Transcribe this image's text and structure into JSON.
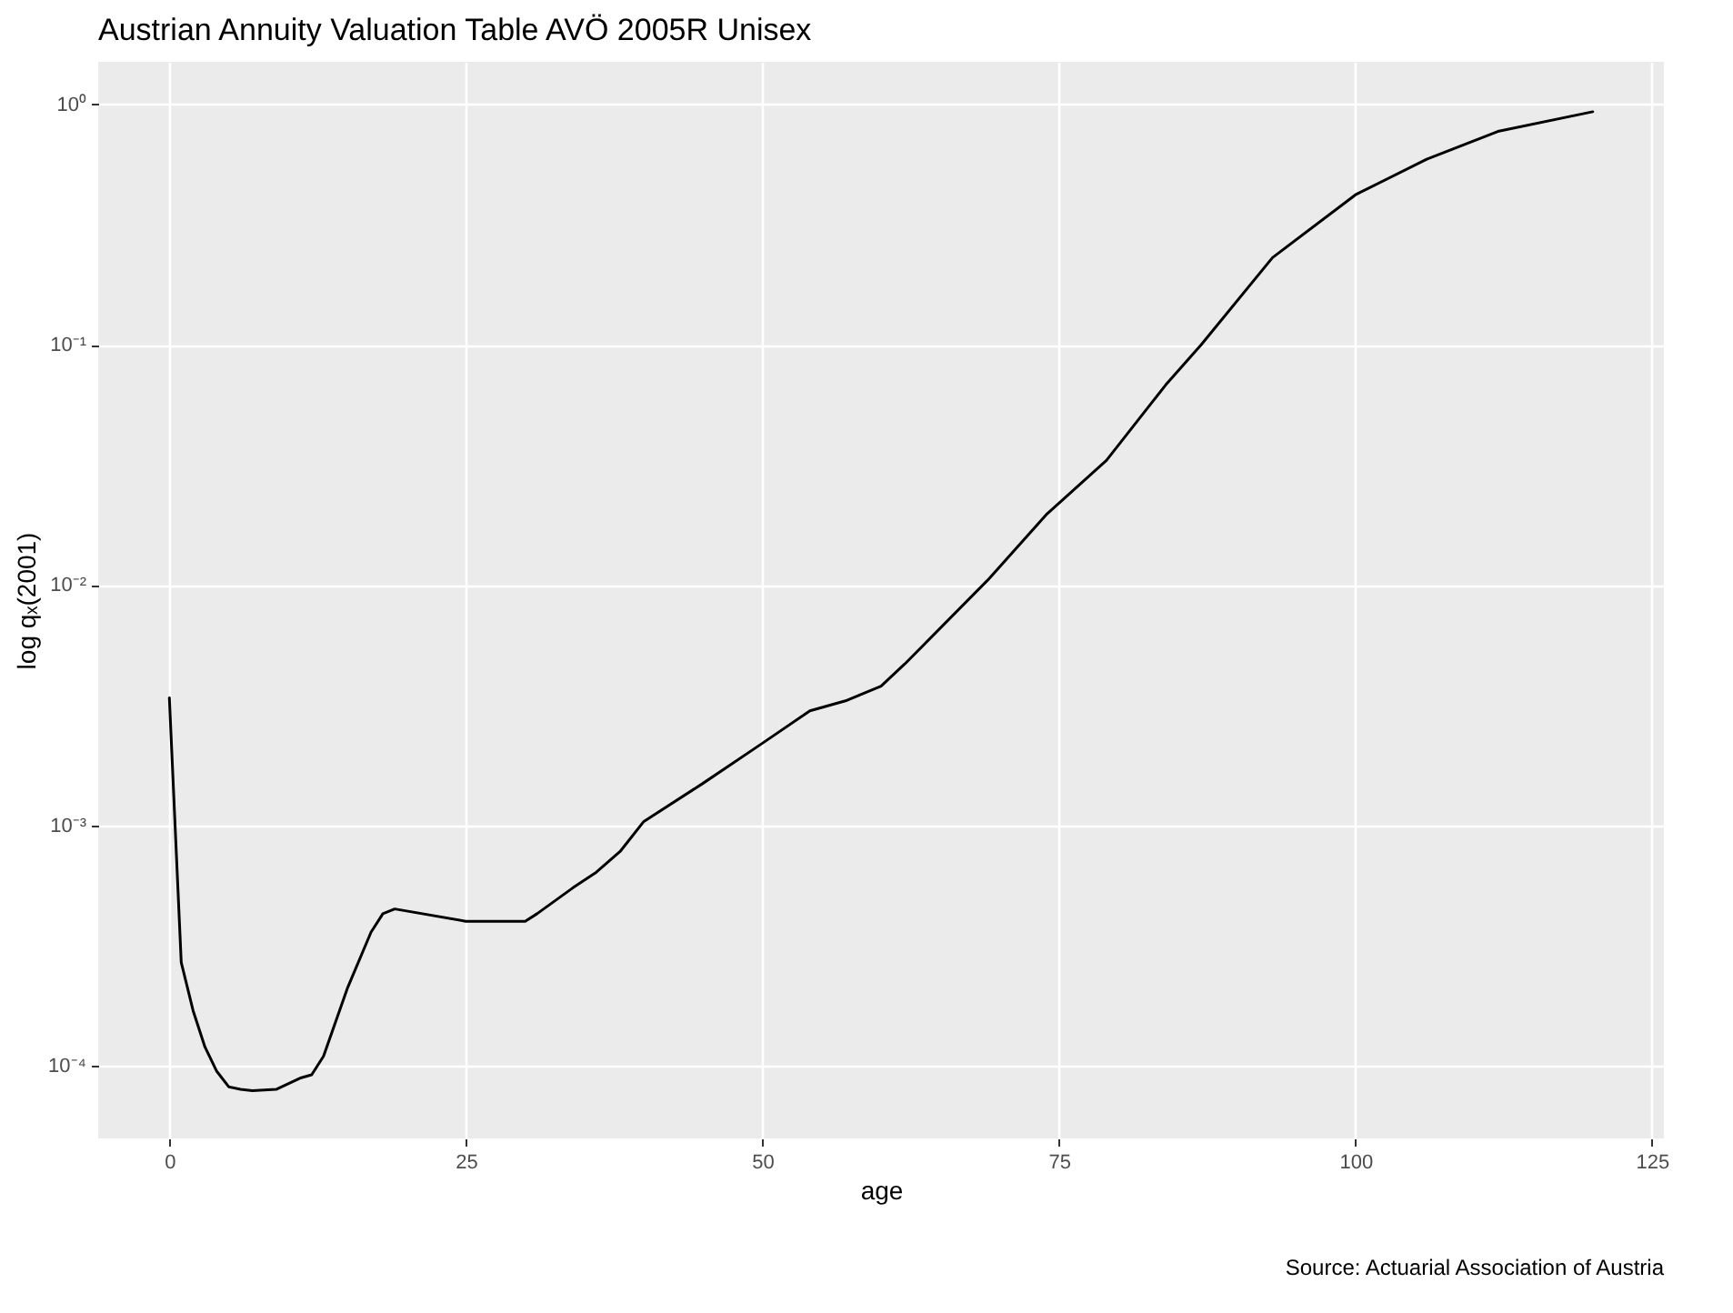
{
  "chart_data": {
    "type": "line",
    "title": "Austrian Annuity Valuation Table AVÖ 2005R Unisex",
    "xlabel": "age",
    "ylabel": "log qₓ(2001)",
    "annotations": [
      "Source: Actuarial Association of Austria"
    ],
    "x": [
      0,
      1,
      2,
      3,
      4,
      5,
      6,
      7,
      9,
      11,
      12,
      13,
      15,
      17,
      18,
      19,
      25,
      30,
      31,
      34,
      36,
      38,
      40,
      45,
      50,
      54,
      57,
      60,
      62,
      69,
      74,
      79,
      84,
      87,
      93,
      100,
      106,
      112,
      120
    ],
    "series": [
      {
        "color": "#000000",
        "values": [
          0.0034,
          0.00027,
          0.00017,
          0.00012,
          9.5e-05,
          8.2e-05,
          8e-05,
          7.9e-05,
          8e-05,
          8.9e-05,
          9.2e-05,
          0.00011,
          0.00021,
          0.00036,
          0.00043,
          0.00045,
          0.0004,
          0.0004,
          0.00043,
          0.00055,
          0.00064,
          0.00078,
          0.00104,
          0.0015,
          0.0022,
          0.003,
          0.0033,
          0.0038,
          0.0047,
          0.0105,
          0.0198,
          0.033,
          0.068,
          0.1,
          0.23,
          0.42,
          0.59,
          0.77,
          0.93
        ]
      }
    ],
    "log": "y",
    "grid": true,
    "xlim": [
      -6,
      126
    ],
    "xticks": [
      0,
      25,
      50,
      75,
      100,
      125
    ],
    "ylim": [
      5e-05,
      1.5
    ],
    "yticks": [
      {
        "value": 0.0001,
        "label": "10⁻⁴"
      },
      {
        "value": 0.001,
        "label": "10⁻³"
      },
      {
        "value": 0.01,
        "label": "10⁻²"
      },
      {
        "value": 0.1,
        "label": "10⁻¹"
      },
      {
        "value": 1,
        "label": "10⁰"
      }
    ]
  }
}
